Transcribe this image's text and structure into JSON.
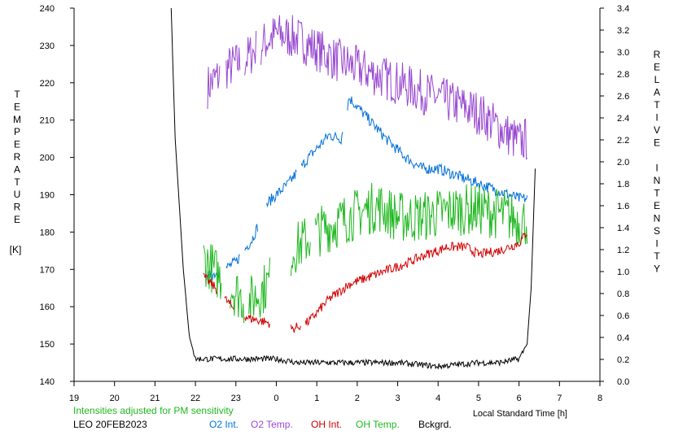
{
  "chart_data": {
    "type": "line",
    "left_axis": {
      "label_letters": [
        "T",
        "E",
        "M",
        "P",
        "E",
        "R",
        "A",
        "T",
        "U",
        "R",
        "E"
      ],
      "unit": "[K]",
      "ylim": [
        140,
        240
      ],
      "ticks": [
        "140",
        "150",
        "160",
        "170",
        "180",
        "190",
        "200",
        "210",
        "220",
        "230",
        "240"
      ]
    },
    "right_axis": {
      "label_letters": [
        "R",
        "E",
        "L",
        "A",
        "T",
        "I",
        "V",
        "E",
        "",
        "I",
        "N",
        "T",
        "E",
        "N",
        "S",
        "I",
        "T",
        "Y"
      ],
      "ylim": [
        0.0,
        3.4
      ],
      "ticks": [
        "0.0",
        "0.2",
        "0.4",
        "0.6",
        "0.8",
        "1.0",
        "1.2",
        "1.4",
        "1.6",
        "1.8",
        "2.0",
        "2.2",
        "2.4",
        "2.6",
        "2.8",
        "3.0",
        "3.2",
        "3.4"
      ]
    },
    "x_axis": {
      "label": "Local Standard Time [h]",
      "ticks": [
        "19",
        "20",
        "21",
        "22",
        "23",
        "0",
        "1",
        "2",
        "3",
        "4",
        "5",
        "6",
        "7",
        "8"
      ]
    },
    "note": "Intensities adjusted for PM sensitivity",
    "station": "LEO 20FEB2023",
    "legend": [
      {
        "label": "O2 Int.",
        "color": "#0070d8"
      },
      {
        "label": "O2 Temp.",
        "color": "#9848d0"
      },
      {
        "label": "OH Int.",
        "color": "#d00000"
      },
      {
        "label": "OH Temp.",
        "color": "#20b820"
      },
      {
        "label": "Bckgrd.",
        "color": "#000000"
      }
    ],
    "series": [
      {
        "key": "o2_temp",
        "axis": "left",
        "color": "#9848d0",
        "noise": 6,
        "points": [
          [
            22.3,
            219
          ],
          [
            22.8,
            224
          ],
          [
            23.2,
            226
          ],
          [
            23.6,
            230
          ],
          [
            24.0,
            233
          ],
          [
            24.5,
            232
          ],
          [
            25.0,
            229
          ],
          [
            25.5,
            226
          ],
          [
            26.0,
            224
          ],
          [
            26.5,
            222
          ],
          [
            27.0,
            220
          ],
          [
            27.5,
            218
          ],
          [
            28.0,
            216
          ],
          [
            28.5,
            214
          ],
          [
            29.0,
            212
          ],
          [
            29.5,
            208
          ],
          [
            30.0,
            204
          ],
          [
            30.2,
            205
          ]
        ],
        "gaps": [
          [
            22.6,
            22.75
          ],
          [
            23.1,
            23.2
          ],
          [
            23.5,
            23.6
          ]
        ]
      },
      {
        "key": "o2_int",
        "axis": "left",
        "color": "#0070d8",
        "noise": 1.5,
        "points": [
          [
            22.3,
            168
          ],
          [
            22.7,
            170
          ],
          [
            23.0,
            172
          ],
          [
            23.4,
            178
          ],
          [
            23.8,
            188
          ],
          [
            24.3,
            193
          ],
          [
            24.8,
            200
          ],
          [
            25.3,
            206
          ],
          [
            25.6,
            205
          ],
          [
            25.8,
            216
          ],
          [
            26.3,
            210
          ],
          [
            26.8,
            204
          ],
          [
            27.2,
            200
          ],
          [
            27.6,
            197
          ],
          [
            28.0,
            197
          ],
          [
            28.5,
            195
          ],
          [
            29.0,
            193
          ],
          [
            29.5,
            191
          ],
          [
            30.0,
            189
          ],
          [
            30.2,
            189
          ]
        ],
        "gaps": [
          [
            22.6,
            22.75
          ],
          [
            23.1,
            23.2
          ],
          [
            23.55,
            23.75
          ],
          [
            24.5,
            24.6
          ],
          [
            25.65,
            25.75
          ]
        ]
      },
      {
        "key": "oh_temp",
        "axis": "left",
        "color": "#20b820",
        "noise": 7,
        "points": [
          [
            22.2,
            173
          ],
          [
            22.6,
            168
          ],
          [
            22.9,
            165
          ],
          [
            23.3,
            161
          ],
          [
            23.7,
            165
          ],
          [
            24.4,
            175
          ],
          [
            25.0,
            180
          ],
          [
            25.6,
            183
          ],
          [
            26.0,
            185
          ],
          [
            26.5,
            187
          ],
          [
            27.0,
            184
          ],
          [
            27.5,
            184
          ],
          [
            28.0,
            185
          ],
          [
            28.5,
            186
          ],
          [
            29.0,
            186
          ],
          [
            29.5,
            185
          ],
          [
            30.0,
            183
          ],
          [
            30.2,
            183
          ]
        ],
        "gaps": [
          [
            22.65,
            22.85
          ],
          [
            23.2,
            23.3
          ],
          [
            23.85,
            24.35
          ],
          [
            24.85,
            24.95
          ]
        ]
      },
      {
        "key": "oh_int",
        "axis": "left",
        "color": "#d00000",
        "noise": 1.3,
        "points": [
          [
            22.2,
            168
          ],
          [
            22.5,
            165
          ],
          [
            22.9,
            160
          ],
          [
            23.3,
            157
          ],
          [
            23.7,
            156
          ],
          [
            24.4,
            154
          ],
          [
            24.8,
            156
          ],
          [
            25.3,
            162
          ],
          [
            25.8,
            166
          ],
          [
            26.3,
            168
          ],
          [
            26.8,
            170
          ],
          [
            27.3,
            172
          ],
          [
            27.7,
            174
          ],
          [
            28.0,
            175
          ],
          [
            28.2,
            176
          ],
          [
            28.7,
            176
          ],
          [
            29.0,
            174
          ],
          [
            29.5,
            175
          ],
          [
            30.0,
            177
          ],
          [
            30.2,
            180
          ]
        ],
        "gaps": [
          [
            22.55,
            22.7
          ],
          [
            22.95,
            23.2
          ],
          [
            23.85,
            24.35
          ],
          [
            24.6,
            24.7
          ]
        ]
      },
      {
        "key": "background",
        "axis": "left",
        "color": "#000000",
        "noise": 0.8,
        "points": [
          [
            21.4,
            240
          ],
          [
            21.5,
            205
          ],
          [
            21.7,
            170
          ],
          [
            21.85,
            152
          ],
          [
            22.0,
            146
          ],
          [
            22.3,
            146
          ],
          [
            23.0,
            146
          ],
          [
            24.0,
            146
          ],
          [
            24.5,
            145
          ],
          [
            25.0,
            145
          ],
          [
            26.0,
            145
          ],
          [
            27.0,
            145
          ],
          [
            28.0,
            144
          ],
          [
            29.0,
            145
          ],
          [
            29.5,
            145
          ],
          [
            30.0,
            146
          ],
          [
            30.2,
            150
          ],
          [
            30.3,
            165
          ],
          [
            30.4,
            197
          ]
        ],
        "gaps": []
      }
    ]
  }
}
